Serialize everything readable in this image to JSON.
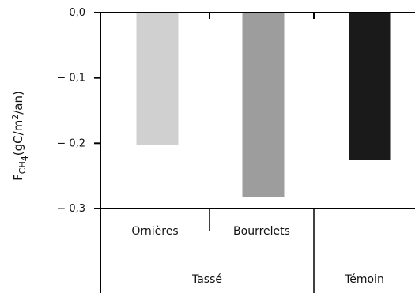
{
  "chart_data": {
    "type": "bar",
    "categories": [
      "Ornières",
      "Bourrelets",
      "Témoin"
    ],
    "groups": [
      {
        "label": "Tassé",
        "members": [
          "Ornières",
          "Bourrelets"
        ]
      },
      {
        "label": "Témoin",
        "members": [
          "Témoin"
        ]
      }
    ],
    "values": [
      -0.203,
      -0.282,
      -0.225
    ],
    "colors": [
      "#d0d0d0",
      "#9d9d9d",
      "#1a1a1a"
    ],
    "ylim": [
      -0.3,
      0.0
    ],
    "yticks": [
      0.0,
      -0.1,
      -0.2,
      -0.3
    ],
    "ytick_labels": [
      "0,0",
      "− 0,1",
      "− 0,2",
      "− 0,3"
    ],
    "ylabel": {
      "main": "F",
      "sub": "CH",
      "sub2": "4",
      "unit_open": "(gC/m",
      "unit_sup": "2",
      "unit_close": "/an)"
    },
    "grid": false
  }
}
